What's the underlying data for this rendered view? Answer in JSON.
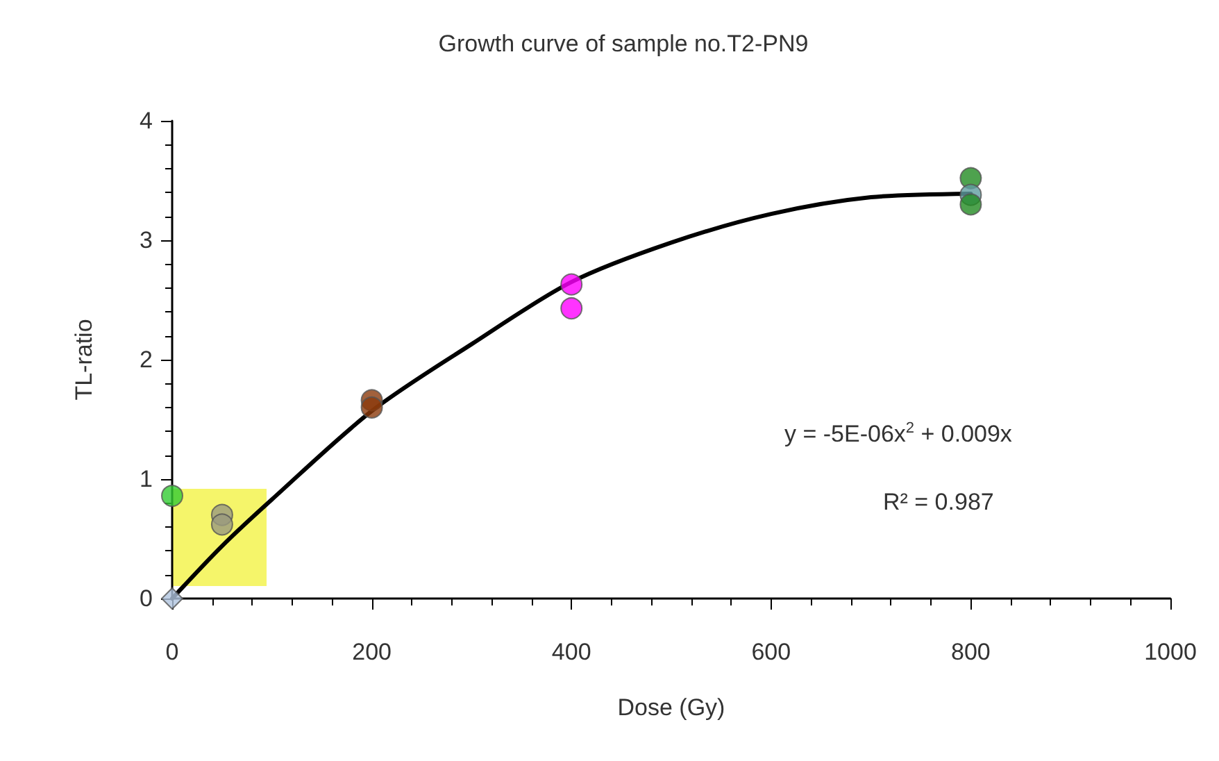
{
  "chart_data": {
    "type": "scatter",
    "title": "Growth curve of sample no.T2-PN9",
    "xlabel": "Dose (Gy)",
    "ylabel": "TL-ratio",
    "xlim": [
      0,
      1000
    ],
    "xticks": [
      0,
      200,
      400,
      600,
      800,
      1000
    ],
    "ylim": [
      0,
      4
    ],
    "yticks": [
      0,
      1,
      2,
      3,
      4
    ],
    "grid": false,
    "marker": "circle",
    "annotations": [
      "y = -5E-06x$^{2}$ + 0.009x",
      "R² = 0.987"
    ],
    "series": [
      {
        "type": "line",
        "marker": "none",
        "line_style": "solid",
        "color": "#000000",
        "x": [
          0,
          50,
          100,
          200,
          300,
          400,
          500,
          600,
          700,
          800
        ],
        "values": [
          0,
          0.44,
          0.83,
          1.57,
          2.13,
          2.65,
          2.98,
          3.22,
          3.36,
          3.39
        ]
      },
      {
        "type": "scatter",
        "marker": "diamond",
        "color": "#b0c4de",
        "x": [
          0
        ],
        "values": [
          0
        ]
      },
      {
        "x": [
          0,
          50,
          50,
          200,
          200,
          400,
          400,
          800,
          800,
          800
        ],
        "values": [
          0.86,
          0.7,
          0.62,
          1.66,
          1.6,
          2.63,
          2.43,
          3.52,
          3.38,
          3.3
        ],
        "colors": [
          "#33cc33",
          "#9a9a80",
          "#9a9a80",
          "#8b3a0b",
          "#8b3a0b",
          "#ff00ff",
          "#ff00ff",
          "#228b22",
          "#5f9ea0",
          "#228b22"
        ]
      }
    ]
  }
}
